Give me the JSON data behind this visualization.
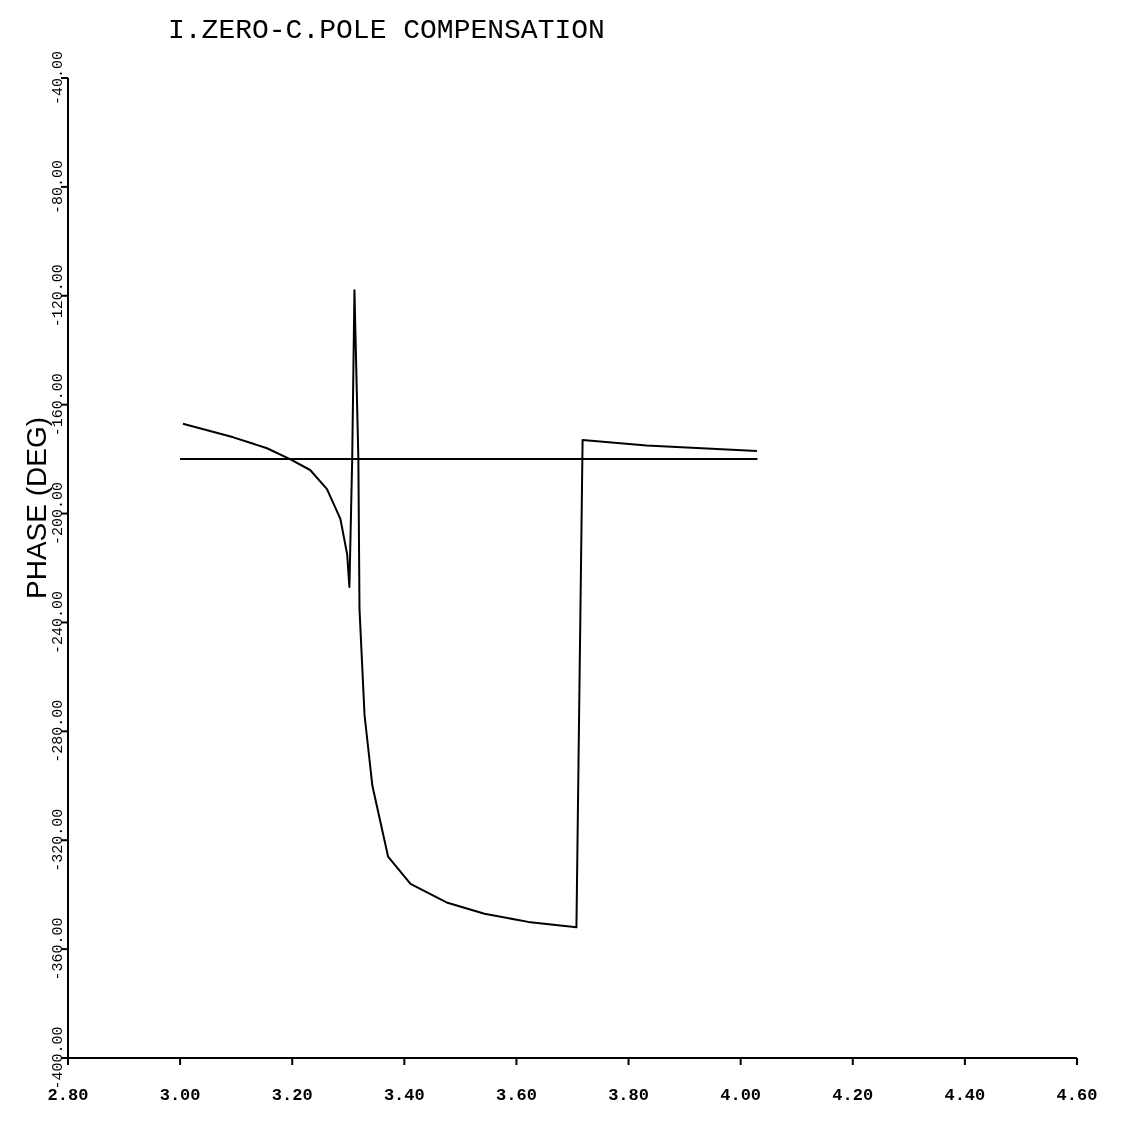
{
  "chart_data": {
    "type": "line",
    "title": "I.ZERO-C.POLE COMPENSATION",
    "ylabel": "PHASE (DEG)",
    "xlim": [
      2.8,
      4.6
    ],
    "ylim": [
      -400,
      -40
    ],
    "xticks": [
      {
        "value": 2.8,
        "label": "2.80"
      },
      {
        "value": 3.0,
        "label": "3.00"
      },
      {
        "value": 3.2,
        "label": "3.20"
      },
      {
        "value": 3.4,
        "label": "3.40"
      },
      {
        "value": 3.6,
        "label": "3.60"
      },
      {
        "value": 3.8,
        "label": "3.80"
      },
      {
        "value": 4.0,
        "label": "4.00"
      },
      {
        "value": 4.2,
        "label": "4.20"
      },
      {
        "value": 4.4,
        "label": "4.40"
      },
      {
        "value": 4.6,
        "label": "4.60"
      }
    ],
    "yticks": [
      {
        "value": -40,
        "label": "-40.00"
      },
      {
        "value": -80,
        "label": "-80.00"
      },
      {
        "value": -120,
        "label": "-120.00"
      },
      {
        "value": -160,
        "label": "-160.00"
      },
      {
        "value": -200,
        "label": "-200.00"
      },
      {
        "value": -240,
        "label": "-240.00"
      },
      {
        "value": -280,
        "label": "-280.00"
      },
      {
        "value": -320,
        "label": "-320.00"
      },
      {
        "value": -360,
        "label": "-360.00"
      },
      {
        "value": -400,
        "label": "-400.00"
      }
    ],
    "grid": false,
    "series": [
      {
        "color": "#000000",
        "x": [
          3.005,
          3.095,
          3.155,
          3.196,
          3.232,
          3.262,
          3.286,
          3.298,
          3.302,
          3.307,
          3.311,
          3.318,
          3.32,
          3.329,
          3.343,
          3.371,
          3.411,
          3.477,
          3.543,
          3.621,
          3.707,
          3.718,
          3.832,
          4.029
        ],
        "values": [
          -167,
          -172,
          -176,
          -180,
          -184,
          -191,
          -202,
          -215,
          -227,
          -180,
          -118,
          -180,
          -235,
          -274,
          -300,
          -326,
          -336,
          -343,
          -347,
          -350,
          -352,
          -173,
          -175,
          -177
        ]
      },
      {
        "color": "#000000",
        "x": [
          3.0,
          4.03
        ],
        "values": [
          -180,
          -180
        ]
      }
    ]
  }
}
